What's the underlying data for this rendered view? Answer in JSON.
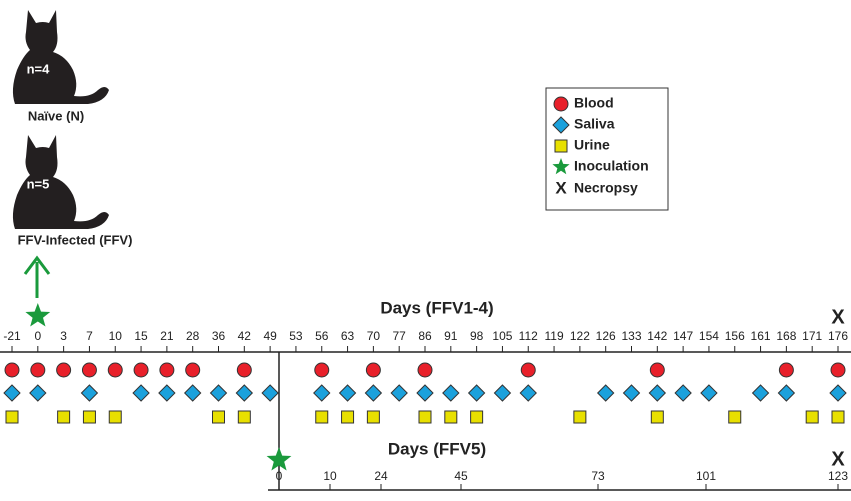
{
  "groups": [
    {
      "n": "n=4",
      "label": "Naïve (N)"
    },
    {
      "n": "n=5",
      "label": "FFV-Infected (FFV)"
    }
  ],
  "legend": [
    "Blood",
    "Saliva",
    "Urine",
    "Inoculation",
    "Necropsy"
  ],
  "timeline1": {
    "title": "Days (FFV1-4)",
    "ticks": [
      -21,
      0,
      3,
      7,
      10,
      15,
      21,
      28,
      36,
      42,
      49,
      53,
      56,
      63,
      70,
      77,
      86,
      91,
      98,
      105,
      112,
      119,
      122,
      126,
      133,
      142,
      147,
      154,
      156,
      161,
      168,
      171,
      176
    ],
    "blood": [
      true,
      true,
      true,
      true,
      true,
      true,
      true,
      true,
      false,
      true,
      false,
      false,
      true,
      false,
      true,
      false,
      true,
      false,
      false,
      false,
      true,
      false,
      false,
      false,
      false,
      true,
      false,
      false,
      false,
      false,
      true,
      false,
      true
    ],
    "saliva": [
      true,
      true,
      false,
      true,
      false,
      true,
      true,
      true,
      true,
      true,
      true,
      false,
      true,
      true,
      true,
      true,
      true,
      true,
      true,
      true,
      true,
      false,
      false,
      true,
      true,
      true,
      true,
      true,
      false,
      true,
      true,
      false,
      true
    ],
    "urine": [
      true,
      false,
      true,
      true,
      true,
      false,
      false,
      false,
      true,
      true,
      false,
      false,
      true,
      true,
      true,
      false,
      true,
      true,
      true,
      false,
      false,
      false,
      true,
      false,
      false,
      true,
      false,
      false,
      true,
      false,
      false,
      true,
      true
    ],
    "end_marker": "X"
  },
  "timeline2": {
    "title": "Days (FFV5)",
    "ticks": [
      0,
      10,
      24,
      45,
      73,
      101,
      123
    ],
    "end_marker": "X"
  }
}
